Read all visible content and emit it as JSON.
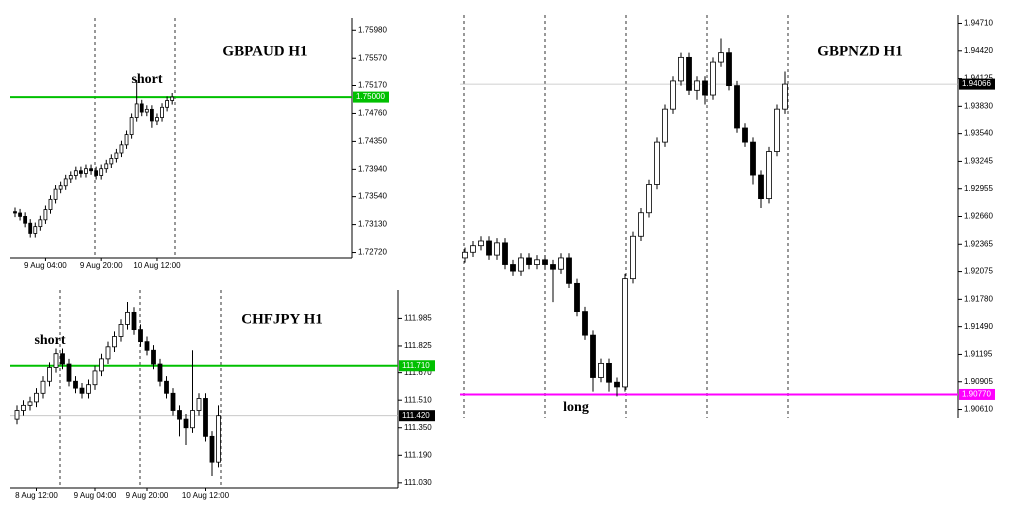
{
  "chart_data": [
    {
      "type": "candlestick",
      "title": "GBPAUD H1",
      "color": "#000000",
      "annotations": [
        "short"
      ],
      "categories": [
        null,
        null,
        null,
        null,
        null,
        null,
        "9 Aug 04:00",
        null,
        null,
        null,
        null,
        null,
        null,
        null,
        null,
        null,
        null,
        "9 Aug 20:00",
        null,
        null,
        null,
        null,
        null,
        null,
        null,
        null,
        null,
        null,
        "10 Aug 12:00",
        null,
        null,
        null
      ],
      "ohlc": [
        [
          1.7332,
          1.7338,
          1.7324,
          1.733
        ],
        [
          1.733,
          1.7336,
          1.7319,
          1.7325
        ],
        [
          1.7325,
          1.7331,
          1.7309,
          1.7315
        ],
        [
          1.7315,
          1.7321,
          1.7294,
          1.73
        ],
        [
          1.73,
          1.7316,
          1.7294,
          1.731
        ],
        [
          1.731,
          1.7326,
          1.7304,
          1.732
        ],
        [
          1.732,
          1.7341,
          1.7314,
          1.7335
        ],
        [
          1.7335,
          1.7356,
          1.7329,
          1.735
        ],
        [
          1.735,
          1.7371,
          1.7344,
          1.7365
        ],
        [
          1.7365,
          1.7376,
          1.7359,
          1.737
        ],
        [
          1.737,
          1.7386,
          1.7364,
          1.738
        ],
        [
          1.738,
          1.7391,
          1.7374,
          1.7385
        ],
        [
          1.7385,
          1.7398,
          1.7379,
          1.7392
        ],
        [
          1.7392,
          1.7398,
          1.7382,
          1.7388
        ],
        [
          1.7388,
          1.7401,
          1.7382,
          1.7395
        ],
        [
          1.7395,
          1.7401,
          1.7386,
          1.7392
        ],
        [
          1.7392,
          1.7398,
          1.7379,
          1.7385
        ],
        [
          1.7385,
          1.7401,
          1.7379,
          1.7395
        ],
        [
          1.7395,
          1.7408,
          1.7389,
          1.7402
        ],
        [
          1.7402,
          1.7416,
          1.7396,
          1.741
        ],
        [
          1.741,
          1.7424,
          1.7404,
          1.7418
        ],
        [
          1.7418,
          1.7436,
          1.7412,
          1.743
        ],
        [
          1.743,
          1.7451,
          1.7424,
          1.7445
        ],
        [
          1.7445,
          1.7476,
          1.7439,
          1.747
        ],
        [
          1.747,
          1.7525,
          1.7464,
          1.749
        ],
        [
          1.749,
          1.7496,
          1.7472,
          1.7478
        ],
        [
          1.7478,
          1.7488,
          1.7472,
          1.7482
        ],
        [
          1.7482,
          1.7488,
          1.7455,
          1.7465
        ],
        [
          1.7465,
          1.7476,
          1.7459,
          1.747
        ],
        [
          1.747,
          1.7491,
          1.7464,
          1.7485
        ],
        [
          1.7485,
          1.7501,
          1.7479,
          1.7495
        ],
        [
          1.7495,
          1.7506,
          1.7489,
          1.75
        ]
      ],
      "levels": [
        {
          "value": 1.75,
          "label": "1.75000",
          "color": "#00c000"
        }
      ],
      "ylim": [
        1.7264,
        1.7616
      ],
      "yticks": [
        {
          "value": 1.7598,
          "label": "1.75980"
        },
        {
          "value": 1.7557,
          "label": "1.75570"
        },
        {
          "value": 1.7517,
          "label": "1.75170"
        },
        {
          "value": 1.7476,
          "label": "1.74760"
        },
        {
          "value": 1.7435,
          "label": "1.74350"
        },
        {
          "value": 1.7394,
          "label": "1.73940"
        },
        {
          "value": 1.7354,
          "label": "1.73540"
        },
        {
          "value": 1.7313,
          "label": "1.73130"
        },
        {
          "value": 1.7272,
          "label": "1.72720"
        }
      ]
    },
    {
      "type": "candlestick",
      "title": "CHFJPY H1",
      "color": "#000000",
      "annotations": [
        "short"
      ],
      "categories": [
        null,
        null,
        null,
        "8 Aug 12:00",
        null,
        null,
        null,
        null,
        null,
        null,
        null,
        null,
        "9 Aug 04:00",
        null,
        null,
        null,
        null,
        null,
        null,
        null,
        "9 Aug 20:00",
        null,
        null,
        null,
        null,
        null,
        null,
        null,
        null,
        "10 Aug 12:00",
        null,
        null
      ],
      "ohlc": [
        [
          111.4,
          111.48,
          111.37,
          111.45
        ],
        [
          111.45,
          111.51,
          111.42,
          111.48
        ],
        [
          111.48,
          111.53,
          111.45,
          111.5
        ],
        [
          111.5,
          111.58,
          111.47,
          111.55
        ],
        [
          111.55,
          111.65,
          111.52,
          111.62
        ],
        [
          111.62,
          111.73,
          111.59,
          111.7
        ],
        [
          111.7,
          111.81,
          111.67,
          111.78
        ],
        [
          111.78,
          111.81,
          111.69,
          111.72
        ],
        [
          111.72,
          111.75,
          111.59,
          111.62
        ],
        [
          111.62,
          111.65,
          111.55,
          111.58
        ],
        [
          111.58,
          111.61,
          111.52,
          111.55
        ],
        [
          111.55,
          111.63,
          111.52,
          111.6
        ],
        [
          111.6,
          111.71,
          111.57,
          111.68
        ],
        [
          111.68,
          111.78,
          111.65,
          111.75
        ],
        [
          111.75,
          111.85,
          111.72,
          111.82
        ],
        [
          111.82,
          111.91,
          111.79,
          111.88
        ],
        [
          111.88,
          111.98,
          111.85,
          111.95
        ],
        [
          111.95,
          112.08,
          111.92,
          112.02
        ],
        [
          112.02,
          112.05,
          111.89,
          111.92
        ],
        [
          111.92,
          111.95,
          111.82,
          111.85
        ],
        [
          111.85,
          111.88,
          111.77,
          111.8
        ],
        [
          111.8,
          111.83,
          111.69,
          111.72
        ],
        [
          111.72,
          111.75,
          111.59,
          111.62
        ],
        [
          111.62,
          111.65,
          111.52,
          111.55
        ],
        [
          111.55,
          111.58,
          111.42,
          111.45
        ],
        [
          111.45,
          111.48,
          111.3,
          111.4
        ],
        [
          111.4,
          111.43,
          111.25,
          111.35
        ],
        [
          111.35,
          111.8,
          111.32,
          111.45
        ],
        [
          111.45,
          111.55,
          111.42,
          111.52
        ],
        [
          111.52,
          111.55,
          111.27,
          111.3
        ],
        [
          111.3,
          111.33,
          111.07,
          111.15
        ],
        [
          111.15,
          111.48,
          111.12,
          111.42
        ]
      ],
      "levels": [
        {
          "value": 111.71,
          "label": "111.710",
          "color": "#00c000"
        },
        {
          "value": 111.42,
          "label": "111.420",
          "color": "#c0c0c0"
        }
      ],
      "ylim": [
        111.0,
        112.15
      ],
      "yticks": [
        111.985,
        111.825,
        {
          "value": 111.67,
          "label": "111.670"
        },
        {
          "value": 111.51,
          "label": "111.510"
        },
        {
          "value": 111.35,
          "label": "111.350"
        },
        {
          "value": 111.19,
          "label": "111.190"
        },
        {
          "value": 111.03,
          "label": "111.030"
        }
      ]
    },
    {
      "type": "candlestick",
      "title": "GBPNZD H1",
      "color": "#000000",
      "annotations": [
        "long"
      ],
      "ohlc": [
        [
          1.9222,
          1.9233,
          1.9217,
          1.9228
        ],
        [
          1.9228,
          1.924,
          1.9223,
          1.9235
        ],
        [
          1.9235,
          1.9245,
          1.923,
          1.924
        ],
        [
          1.924,
          1.9245,
          1.922,
          1.9225
        ],
        [
          1.9225,
          1.9243,
          1.922,
          1.9238
        ],
        [
          1.9238,
          1.9243,
          1.921,
          1.9215
        ],
        [
          1.9215,
          1.922,
          1.9203,
          1.9208
        ],
        [
          1.9208,
          1.9227,
          1.9203,
          1.9222
        ],
        [
          1.9222,
          1.9227,
          1.921,
          1.9215
        ],
        [
          1.9215,
          1.9225,
          1.921,
          1.922
        ],
        [
          1.922,
          1.9225,
          1.921,
          1.9215
        ],
        [
          1.9215,
          1.922,
          1.9175,
          1.921
        ],
        [
          1.921,
          1.9227,
          1.9205,
          1.9222
        ],
        [
          1.9222,
          1.9227,
          1.919,
          1.9195
        ],
        [
          1.9195,
          1.92,
          1.916,
          1.9165
        ],
        [
          1.9165,
          1.917,
          1.9135,
          1.914
        ],
        [
          1.914,
          1.9145,
          1.908,
          1.9095
        ],
        [
          1.9095,
          1.9115,
          1.909,
          1.911
        ],
        [
          1.911,
          1.9115,
          1.908,
          1.909
        ],
        [
          1.909,
          1.9095,
          1.9075,
          1.9085
        ],
        [
          1.9085,
          1.9205,
          1.908,
          1.92
        ],
        [
          1.92,
          1.925,
          1.9195,
          1.9245
        ],
        [
          1.9245,
          1.9275,
          1.924,
          1.927
        ],
        [
          1.927,
          1.9305,
          1.9265,
          1.93
        ],
        [
          1.93,
          1.935,
          1.9295,
          1.9345
        ],
        [
          1.9345,
          1.9385,
          1.934,
          1.938
        ],
        [
          1.938,
          1.9415,
          1.9375,
          1.941
        ],
        [
          1.941,
          1.944,
          1.9405,
          1.9435
        ],
        [
          1.9435,
          1.944,
          1.9395,
          1.94
        ],
        [
          1.94,
          1.9415,
          1.939,
          1.941
        ],
        [
          1.941,
          1.9415,
          1.9385,
          1.9395
        ],
        [
          1.9395,
          1.9435,
          1.939,
          1.943
        ],
        [
          1.943,
          1.9455,
          1.9425,
          1.944
        ],
        [
          1.944,
          1.9445,
          1.94,
          1.9405
        ],
        [
          1.9405,
          1.941,
          1.9355,
          1.936
        ],
        [
          1.936,
          1.9365,
          1.934,
          1.9345
        ],
        [
          1.9345,
          1.935,
          1.93,
          1.931
        ],
        [
          1.931,
          1.9315,
          1.9275,
          1.9285
        ],
        [
          1.9285,
          1.934,
          1.928,
          1.9335
        ],
        [
          1.9335,
          1.9385,
          1.933,
          1.938
        ],
        [
          1.938,
          1.942,
          1.9375,
          1.94066
        ]
      ],
      "levels": [
        {
          "value": 1.94066,
          "label": "1.94066",
          "color": "#c0c0c0"
        },
        {
          "value": 1.9077,
          "label": "1.90770",
          "color": "#ff00ff"
        }
      ],
      "ylim": [
        1.9052,
        1.948
      ],
      "yticks": [
        {
          "value": 1.9471,
          "label": "1.94710"
        },
        {
          "value": 1.9442,
          "label": "1.94420"
        },
        1.94125,
        {
          "value": 1.9383,
          "label": "1.93830"
        },
        {
          "value": 1.9354,
          "label": "1.93540"
        },
        1.93245,
        1.92955,
        {
          "value": 1.9266,
          "label": "1.92660"
        },
        1.92365,
        1.92075,
        {
          "value": 1.9178,
          "label": "1.91780"
        },
        {
          "value": 1.9149,
          "label": "1.91490"
        },
        1.91195,
        1.90905,
        {
          "value": 1.9061,
          "label": "1.90610"
        }
      ]
    }
  ]
}
